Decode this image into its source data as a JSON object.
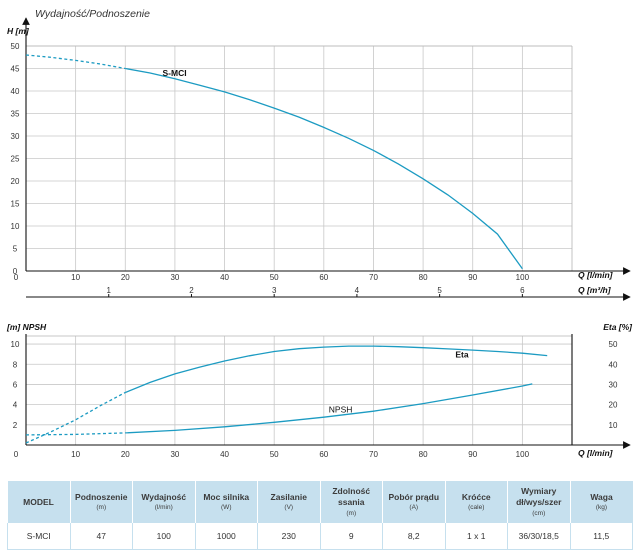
{
  "chart_data": [
    {
      "type": "line",
      "title": "Wydajność/Podnoszenie",
      "ylabel": "H [m]",
      "xlabel": "Q [l/min]",
      "x2label": "Q [m³/h]",
      "x_ticks": [
        "0",
        "10",
        "20",
        "30",
        "40",
        "50",
        "60",
        "70",
        "80",
        "90",
        "100"
      ],
      "x2_ticks": [
        "1",
        "2",
        "3",
        "4",
        "5",
        "6"
      ],
      "y_ticks": [
        "0",
        "5",
        "10",
        "15",
        "20",
        "25",
        "30",
        "35",
        "40",
        "45",
        "50"
      ],
      "xlim": [
        0,
        110
      ],
      "x2lim": [
        0,
        6.6
      ],
      "ylim": [
        0,
        50
      ],
      "grid": true,
      "series": [
        {
          "name": "S-MCI",
          "color": "#1c9bc2",
          "x": [
            0,
            5,
            10,
            15,
            20,
            25,
            30,
            35,
            40,
            45,
            50,
            55,
            60,
            65,
            70,
            75,
            80,
            85,
            90,
            95,
            100
          ],
          "y": [
            48,
            47.5,
            46.8,
            46,
            45,
            44,
            42.7,
            41.3,
            39.8,
            38.1,
            36.2,
            34.2,
            31.9,
            29.5,
            26.8,
            23.8,
            20.5,
            16.9,
            12.8,
            8.2,
            0.5
          ],
          "dashed_until_x": 20
        }
      ]
    },
    {
      "type": "line",
      "ylabel_left": "[m]  NPSH",
      "ylabel_right": "Eta [%]",
      "xlabel": "Q [l/min]",
      "x_ticks": [
        "0",
        "10",
        "20",
        "30",
        "40",
        "50",
        "60",
        "70",
        "80",
        "90",
        "100"
      ],
      "y_ticks_left": [
        "2",
        "4",
        "6",
        "8",
        "10"
      ],
      "y_ticks_right": [
        "10",
        "20",
        "30",
        "40",
        "50"
      ],
      "xlim": [
        0,
        110
      ],
      "ylim_left": [
        0,
        10.8
      ],
      "ylim_right": [
        0,
        54
      ],
      "grid": true,
      "series": [
        {
          "name": "Eta",
          "axis": "right",
          "color": "#1c9bc2",
          "x": [
            0,
            5,
            10,
            15,
            20,
            25,
            30,
            35,
            40,
            45,
            50,
            55,
            60,
            65,
            70,
            75,
            80,
            85,
            90,
            95,
            100,
            105
          ],
          "y": [
            1,
            6.5,
            12.5,
            19.5,
            26,
            31,
            35.2,
            38.6,
            41.6,
            44.2,
            46.3,
            47.7,
            48.5,
            49,
            49,
            48.7,
            48.2,
            47.6,
            47,
            46.3,
            45.5,
            44.3
          ],
          "dashed_until_x": 20
        },
        {
          "name": "NPSH",
          "axis": "left",
          "color": "#1c9bc2",
          "x": [
            0,
            10,
            20,
            30,
            40,
            50,
            60,
            70,
            80,
            90,
            100,
            102
          ],
          "y": [
            1,
            1.05,
            1.2,
            1.45,
            1.8,
            2.25,
            2.75,
            3.35,
            4.1,
            4.95,
            5.85,
            6.05
          ],
          "dashed_until_x": 20
        }
      ]
    }
  ],
  "table": {
    "headers": [
      {
        "label": "MODEL",
        "unit": ""
      },
      {
        "label": "Podnoszenie",
        "unit": "(m)"
      },
      {
        "label": "Wydajność",
        "unit": "(l/min)"
      },
      {
        "label": "Moc silnika",
        "unit": "(W)"
      },
      {
        "label": "Zasilanie",
        "unit": "(V)"
      },
      {
        "label": "Zdolność ssania",
        "unit": "(m)"
      },
      {
        "label": "Pobór prądu",
        "unit": "(A)"
      },
      {
        "label": "Króćce",
        "unit": "(cale)"
      },
      {
        "label": "Wymiary dł/wys/szer",
        "unit": "(cm)"
      },
      {
        "label": "Waga",
        "unit": "(kg)"
      }
    ],
    "rows": [
      [
        "S-MCI",
        "47",
        "100",
        "1000",
        "230",
        "9",
        "8,2",
        "1 x 1",
        "36/30/18,5",
        "11,5"
      ]
    ]
  }
}
